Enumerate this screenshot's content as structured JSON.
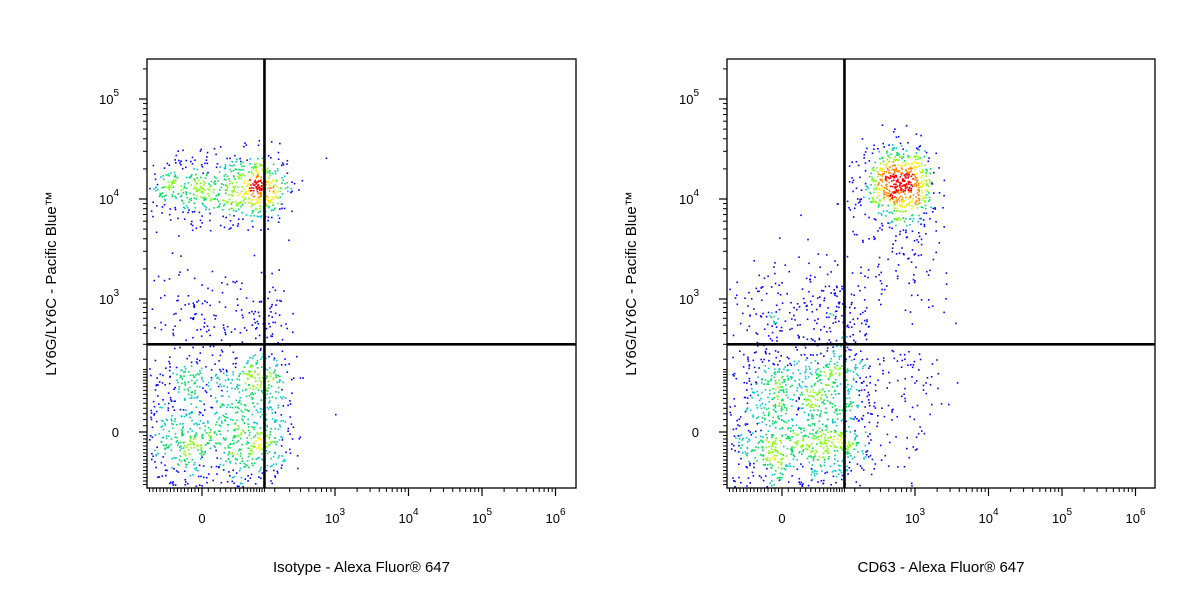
{
  "chart_data": [
    {
      "type": "scatter",
      "style": "density-dot-plot",
      "xlabel": "Isotype - Alexa Fluor® 647",
      "ylabel": "LY6G/LY6C - Pacific Blue™",
      "x_ticks": [
        {
          "value": 0,
          "base": "0",
          "exp": ""
        },
        {
          "value": 1000,
          "base": "10",
          "exp": "3"
        },
        {
          "value": 10000,
          "base": "10",
          "exp": "4"
        },
        {
          "value": 100000,
          "base": "10",
          "exp": "5"
        },
        {
          "value": 1000000,
          "base": "10",
          "exp": "6"
        }
      ],
      "y_ticks": [
        {
          "value": 0,
          "base": "0",
          "exp": ""
        },
        {
          "value": 1000,
          "base": "10",
          "exp": "3"
        },
        {
          "value": 10000,
          "base": "10",
          "exp": "4"
        },
        {
          "value": 100000,
          "base": "10",
          "exp": "5"
        }
      ],
      "x_scale": "biexponential",
      "y_scale": "biexponential",
      "gates": {
        "x": 150,
        "y": 300
      },
      "clusters": [
        {
          "x_center": 30,
          "x_spread": 120,
          "y_center": 0,
          "y_spread": 90,
          "count": 900
        },
        {
          "x_center": 60,
          "x_spread": 110,
          "y_center": 13000,
          "y_spread": 0.18,
          "count": 700
        },
        {
          "x_center": 40,
          "x_spread": 110,
          "y_center": 700,
          "y_spread": 0.25,
          "count": 180
        },
        {
          "x_center": 40,
          "x_spread": 110,
          "y_center": 80,
          "y_spread": 120,
          "count": 180
        }
      ],
      "outliers": [
        {
          "x": 780,
          "y": 26000
        },
        {
          "x": 420,
          "y": 120
        },
        {
          "x": 300,
          "y": 50
        },
        {
          "x": 1000,
          "y": 30
        },
        {
          "x": 200,
          "y": 700
        }
      ]
    },
    {
      "type": "scatter",
      "style": "density-dot-plot",
      "xlabel": "CD63 - Alexa Fluor® 647",
      "ylabel": "LY6G/LY6C - Pacific Blue™",
      "x_ticks": [
        {
          "value": 0,
          "base": "0",
          "exp": ""
        },
        {
          "value": 1000,
          "base": "10",
          "exp": "3"
        },
        {
          "value": 10000,
          "base": "10",
          "exp": "4"
        },
        {
          "value": 100000,
          "base": "10",
          "exp": "5"
        },
        {
          "value": 1000000,
          "base": "10",
          "exp": "6"
        }
      ],
      "y_ticks": [
        {
          "value": 0,
          "base": "0",
          "exp": ""
        },
        {
          "value": 1000,
          "base": "10",
          "exp": "3"
        },
        {
          "value": 10000,
          "base": "10",
          "exp": "4"
        },
        {
          "value": 100000,
          "base": "10",
          "exp": "5"
        }
      ],
      "x_scale": "biexponential",
      "y_scale": "biexponential",
      "gates": {
        "x": 150,
        "y": 300
      },
      "clusters": [
        {
          "x_center": 30,
          "x_spread": 110,
          "y_center": 0,
          "y_spread": 90,
          "count": 1000
        },
        {
          "x_center": 650,
          "x_spread": 0.22,
          "y_center": 14000,
          "y_spread": 0.2,
          "count": 650
        },
        {
          "x_center": 60,
          "x_spread": 110,
          "y_center": 700,
          "y_spread": 0.28,
          "count": 260
        },
        {
          "x_center": 60,
          "x_spread": 110,
          "y_center": 100,
          "y_spread": 140,
          "count": 200
        },
        {
          "x_center": 700,
          "x_spread": 0.3,
          "y_center": 50,
          "y_spread": 110,
          "count": 110
        },
        {
          "x_center": 700,
          "x_spread": 0.3,
          "y_center": 3000,
          "y_spread": 0.3,
          "count": 90
        }
      ],
      "outliers": [
        {
          "x": 30,
          "y": 7000
        },
        {
          "x": 1500,
          "y": 1000
        },
        {
          "x": 1200,
          "y": 1000
        }
      ]
    }
  ]
}
